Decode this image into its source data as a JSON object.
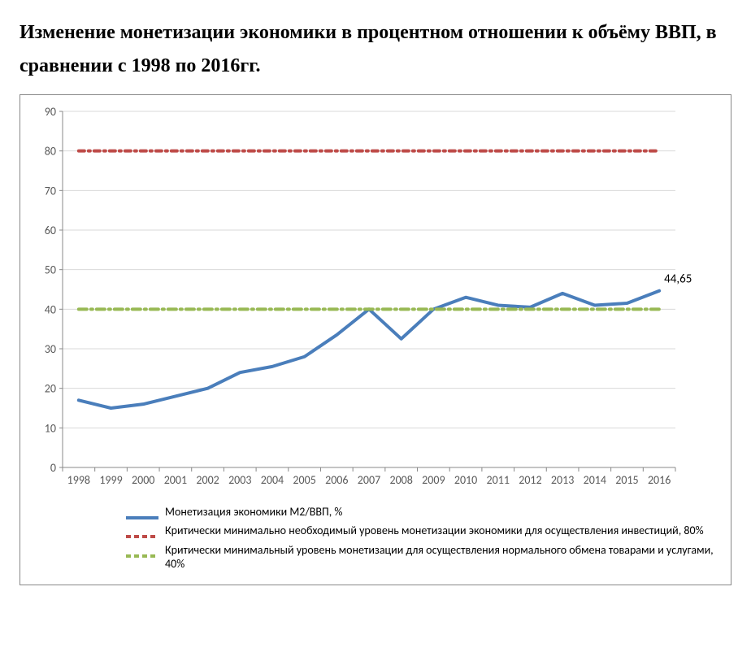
{
  "title": "Изменение монетизации экономики в процентном отношении к объёму ВВП, в сравнении с 1998 по 2016гг.",
  "chart": {
    "type": "line",
    "background_color": "#ffffff",
    "border_color": "#888888",
    "grid_color": "#d9d9d9",
    "axis_color": "#888888",
    "tick_font_size": 14,
    "tick_color": "#595959",
    "ylim": [
      0,
      90
    ],
    "ytick_step": 10,
    "categories": [
      "1998",
      "1999",
      "2000",
      "2001",
      "2002",
      "2003",
      "2004",
      "2005",
      "2006",
      "2007",
      "2008",
      "2009",
      "2010",
      "2011",
      "2012",
      "2013",
      "2014",
      "2015",
      "2016"
    ],
    "series": [
      {
        "id": "monetization",
        "label": "Монетизация экономики М2/ВВП, %",
        "color": "#4a7ebb",
        "line_width": 4,
        "dash": "solid",
        "marker": "none",
        "values": [
          17,
          15,
          16,
          18,
          20,
          24,
          25.5,
          28,
          33.5,
          40,
          32.5,
          40,
          43,
          41,
          40.5,
          44,
          41,
          41.5,
          44.65
        ],
        "end_label": "44,65",
        "end_label_color": "#000000",
        "end_label_fontsize": 15
      },
      {
        "id": "crit80",
        "label": "Критически минимально необходимый уровень монетизации экономики для осуществления инвестиций, 80%",
        "color": "#be4b48",
        "line_width": 4,
        "dash": "7 5 2 5",
        "values": [
          80,
          80,
          80,
          80,
          80,
          80,
          80,
          80,
          80,
          80,
          80,
          80,
          80,
          80,
          80,
          80,
          80,
          80,
          80
        ]
      },
      {
        "id": "crit40",
        "label": "Критически минимальный уровень монетизации для осуществления нормального обмена товарами и услугами, 40%",
        "color": "#98b954",
        "line_width": 4,
        "dash": "10 5 2 5",
        "values": [
          40,
          40,
          40,
          40,
          40,
          40,
          40,
          40,
          40,
          40,
          40,
          40,
          40,
          40,
          40,
          40,
          40,
          40,
          40
        ]
      }
    ],
    "legend_swatch_width": 40
  }
}
